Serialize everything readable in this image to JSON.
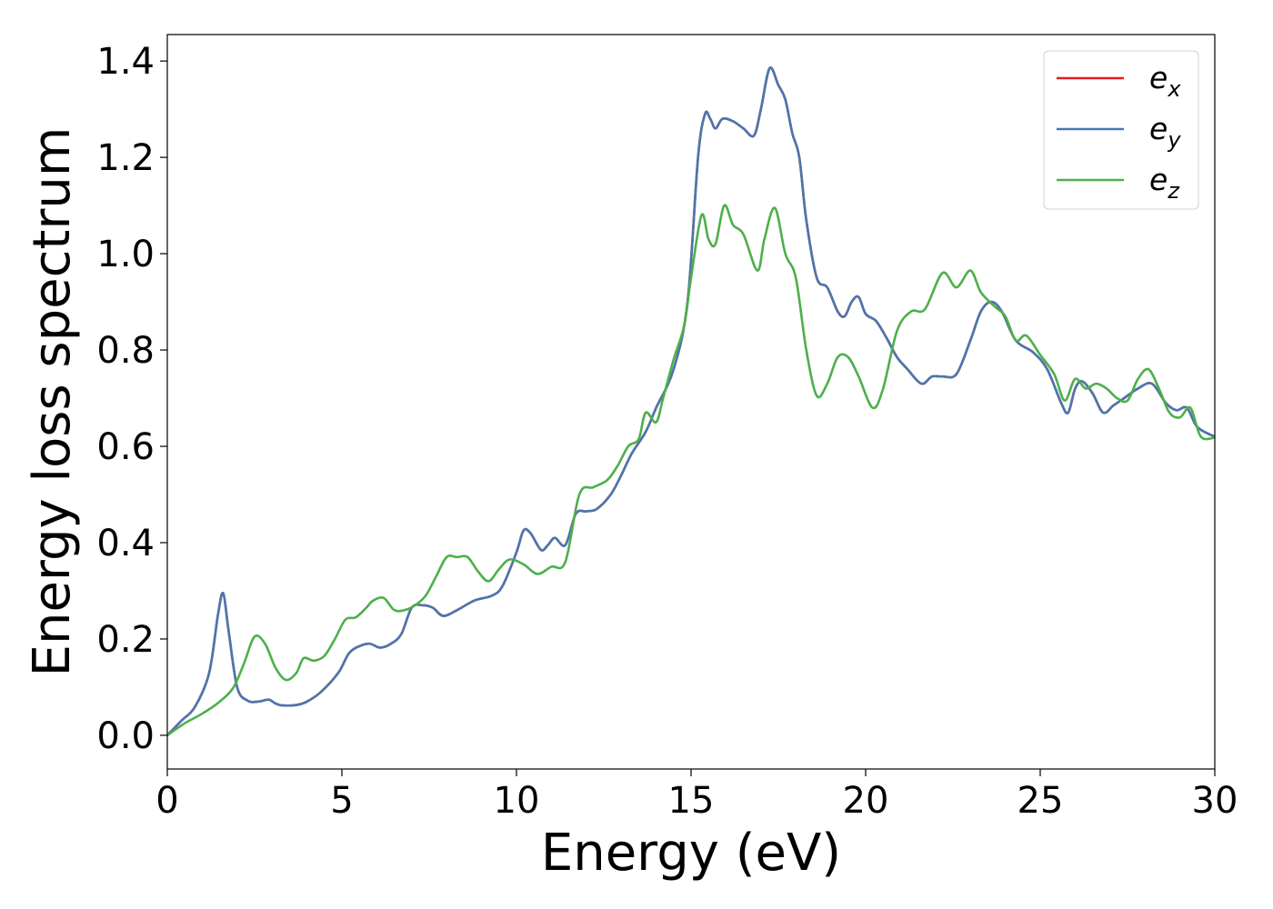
{
  "chart_data": {
    "type": "line",
    "title": "",
    "xlabel": "Energy (eV)",
    "ylabel": "Energy loss spectrum",
    "xlim": [
      0,
      30
    ],
    "ylim": [
      -0.07,
      1.455
    ],
    "xticks": [
      0,
      5,
      10,
      15,
      20,
      25,
      30
    ],
    "xtick_labels": [
      "0",
      "5",
      "10",
      "15",
      "20",
      "25",
      "30"
    ],
    "yticks": [
      0.0,
      0.2,
      0.4,
      0.6,
      0.8,
      1.0,
      1.2,
      1.4
    ],
    "ytick_labels": [
      "0.0",
      "0.2",
      "0.4",
      "0.6",
      "0.8",
      "1.0",
      "1.2",
      "1.4"
    ],
    "grid": false,
    "legend_position": "top-right",
    "series": [
      {
        "name": "e_x",
        "label_base": "e",
        "label_sub": "x",
        "color": "#e41a1c",
        "points": [
          [
            0,
            0
          ],
          [
            0.4,
            0.03
          ],
          [
            0.8,
            0.06
          ],
          [
            1.2,
            0.13
          ],
          [
            1.45,
            0.25
          ],
          [
            1.6,
            0.295
          ],
          [
            1.75,
            0.22
          ],
          [
            2.0,
            0.1
          ],
          [
            2.3,
            0.072
          ],
          [
            2.6,
            0.07
          ],
          [
            2.9,
            0.074
          ],
          [
            3.1,
            0.066
          ],
          [
            3.3,
            0.062
          ],
          [
            3.7,
            0.063
          ],
          [
            4.0,
            0.07
          ],
          [
            4.4,
            0.09
          ],
          [
            4.9,
            0.13
          ],
          [
            5.2,
            0.17
          ],
          [
            5.5,
            0.185
          ],
          [
            5.8,
            0.19
          ],
          [
            6.1,
            0.182
          ],
          [
            6.4,
            0.19
          ],
          [
            6.7,
            0.21
          ],
          [
            7.0,
            0.265
          ],
          [
            7.3,
            0.27
          ],
          [
            7.6,
            0.265
          ],
          [
            7.9,
            0.248
          ],
          [
            8.3,
            0.26
          ],
          [
            8.8,
            0.28
          ],
          [
            9.3,
            0.29
          ],
          [
            9.6,
            0.31
          ],
          [
            10.0,
            0.38
          ],
          [
            10.2,
            0.425
          ],
          [
            10.4,
            0.42
          ],
          [
            10.7,
            0.385
          ],
          [
            10.9,
            0.395
          ],
          [
            11.1,
            0.41
          ],
          [
            11.4,
            0.395
          ],
          [
            11.7,
            0.46
          ],
          [
            12.0,
            0.465
          ],
          [
            12.3,
            0.47
          ],
          [
            12.7,
            0.5
          ],
          [
            13.0,
            0.54
          ],
          [
            13.3,
            0.585
          ],
          [
            13.7,
            0.63
          ],
          [
            14.0,
            0.68
          ],
          [
            14.5,
            0.76
          ],
          [
            14.9,
            0.9
          ],
          [
            15.2,
            1.2
          ],
          [
            15.4,
            1.29
          ],
          [
            15.55,
            1.28
          ],
          [
            15.7,
            1.26
          ],
          [
            15.9,
            1.28
          ],
          [
            16.2,
            1.275
          ],
          [
            16.5,
            1.26
          ],
          [
            16.8,
            1.245
          ],
          [
            17.0,
            1.3
          ],
          [
            17.25,
            1.385
          ],
          [
            17.5,
            1.35
          ],
          [
            17.7,
            1.32
          ],
          [
            17.9,
            1.25
          ],
          [
            18.1,
            1.2
          ],
          [
            18.3,
            1.07
          ],
          [
            18.6,
            0.95
          ],
          [
            18.9,
            0.93
          ],
          [
            19.2,
            0.88
          ],
          [
            19.4,
            0.87
          ],
          [
            19.6,
            0.9
          ],
          [
            19.8,
            0.91
          ],
          [
            20.0,
            0.875
          ],
          [
            20.3,
            0.86
          ],
          [
            20.6,
            0.825
          ],
          [
            20.9,
            0.785
          ],
          [
            21.2,
            0.76
          ],
          [
            21.6,
            0.73
          ],
          [
            21.9,
            0.745
          ],
          [
            22.2,
            0.745
          ],
          [
            22.6,
            0.75
          ],
          [
            23.0,
            0.82
          ],
          [
            23.3,
            0.88
          ],
          [
            23.6,
            0.9
          ],
          [
            23.9,
            0.88
          ],
          [
            24.3,
            0.82
          ],
          [
            24.8,
            0.795
          ],
          [
            25.2,
            0.76
          ],
          [
            25.6,
            0.69
          ],
          [
            25.8,
            0.67
          ],
          [
            26.0,
            0.72
          ],
          [
            26.2,
            0.735
          ],
          [
            26.5,
            0.71
          ],
          [
            26.8,
            0.67
          ],
          [
            27.1,
            0.685
          ],
          [
            27.4,
            0.7
          ],
          [
            27.8,
            0.72
          ],
          [
            28.2,
            0.73
          ],
          [
            28.6,
            0.69
          ],
          [
            28.9,
            0.675
          ],
          [
            29.2,
            0.68
          ],
          [
            29.5,
            0.64
          ],
          [
            30.0,
            0.62
          ]
        ]
      },
      {
        "name": "e_y",
        "label_base": "e",
        "label_sub": "y",
        "color": "#4a76b0",
        "points": [
          [
            0,
            0
          ],
          [
            0.4,
            0.03
          ],
          [
            0.8,
            0.06
          ],
          [
            1.2,
            0.13
          ],
          [
            1.45,
            0.25
          ],
          [
            1.6,
            0.295
          ],
          [
            1.75,
            0.22
          ],
          [
            2.0,
            0.1
          ],
          [
            2.3,
            0.072
          ],
          [
            2.6,
            0.07
          ],
          [
            2.9,
            0.074
          ],
          [
            3.1,
            0.066
          ],
          [
            3.3,
            0.062
          ],
          [
            3.7,
            0.063
          ],
          [
            4.0,
            0.07
          ],
          [
            4.4,
            0.09
          ],
          [
            4.9,
            0.13
          ],
          [
            5.2,
            0.17
          ],
          [
            5.5,
            0.185
          ],
          [
            5.8,
            0.19
          ],
          [
            6.1,
            0.182
          ],
          [
            6.4,
            0.19
          ],
          [
            6.7,
            0.21
          ],
          [
            7.0,
            0.265
          ],
          [
            7.3,
            0.27
          ],
          [
            7.6,
            0.265
          ],
          [
            7.9,
            0.248
          ],
          [
            8.3,
            0.26
          ],
          [
            8.8,
            0.28
          ],
          [
            9.3,
            0.29
          ],
          [
            9.6,
            0.31
          ],
          [
            10.0,
            0.38
          ],
          [
            10.2,
            0.425
          ],
          [
            10.4,
            0.42
          ],
          [
            10.7,
            0.385
          ],
          [
            10.9,
            0.395
          ],
          [
            11.1,
            0.41
          ],
          [
            11.4,
            0.395
          ],
          [
            11.7,
            0.46
          ],
          [
            12.0,
            0.465
          ],
          [
            12.3,
            0.47
          ],
          [
            12.7,
            0.5
          ],
          [
            13.0,
            0.54
          ],
          [
            13.3,
            0.585
          ],
          [
            13.7,
            0.63
          ],
          [
            14.0,
            0.68
          ],
          [
            14.5,
            0.76
          ],
          [
            14.9,
            0.9
          ],
          [
            15.2,
            1.2
          ],
          [
            15.4,
            1.29
          ],
          [
            15.55,
            1.28
          ],
          [
            15.7,
            1.26
          ],
          [
            15.9,
            1.28
          ],
          [
            16.2,
            1.275
          ],
          [
            16.5,
            1.26
          ],
          [
            16.8,
            1.245
          ],
          [
            17.0,
            1.3
          ],
          [
            17.25,
            1.385
          ],
          [
            17.5,
            1.35
          ],
          [
            17.7,
            1.32
          ],
          [
            17.9,
            1.25
          ],
          [
            18.1,
            1.2
          ],
          [
            18.3,
            1.07
          ],
          [
            18.6,
            0.95
          ],
          [
            18.9,
            0.93
          ],
          [
            19.2,
            0.88
          ],
          [
            19.4,
            0.87
          ],
          [
            19.6,
            0.9
          ],
          [
            19.8,
            0.91
          ],
          [
            20.0,
            0.875
          ],
          [
            20.3,
            0.86
          ],
          [
            20.6,
            0.825
          ],
          [
            20.9,
            0.785
          ],
          [
            21.2,
            0.76
          ],
          [
            21.6,
            0.73
          ],
          [
            21.9,
            0.745
          ],
          [
            22.2,
            0.745
          ],
          [
            22.6,
            0.75
          ],
          [
            23.0,
            0.82
          ],
          [
            23.3,
            0.88
          ],
          [
            23.6,
            0.9
          ],
          [
            23.9,
            0.88
          ],
          [
            24.3,
            0.82
          ],
          [
            24.8,
            0.795
          ],
          [
            25.2,
            0.76
          ],
          [
            25.6,
            0.69
          ],
          [
            25.8,
            0.67
          ],
          [
            26.0,
            0.72
          ],
          [
            26.2,
            0.735
          ],
          [
            26.5,
            0.71
          ],
          [
            26.8,
            0.67
          ],
          [
            27.1,
            0.685
          ],
          [
            27.4,
            0.7
          ],
          [
            27.8,
            0.72
          ],
          [
            28.2,
            0.73
          ],
          [
            28.6,
            0.69
          ],
          [
            28.9,
            0.675
          ],
          [
            29.2,
            0.68
          ],
          [
            29.5,
            0.64
          ],
          [
            30.0,
            0.62
          ]
        ]
      },
      {
        "name": "e_z",
        "label_base": "e",
        "label_sub": "z",
        "color": "#4daf4a",
        "points": [
          [
            0,
            0
          ],
          [
            0.5,
            0.025
          ],
          [
            1.0,
            0.045
          ],
          [
            1.5,
            0.07
          ],
          [
            1.9,
            0.1
          ],
          [
            2.2,
            0.15
          ],
          [
            2.5,
            0.205
          ],
          [
            2.8,
            0.19
          ],
          [
            3.1,
            0.14
          ],
          [
            3.4,
            0.115
          ],
          [
            3.7,
            0.13
          ],
          [
            3.9,
            0.16
          ],
          [
            4.2,
            0.155
          ],
          [
            4.5,
            0.165
          ],
          [
            4.8,
            0.2
          ],
          [
            5.1,
            0.24
          ],
          [
            5.4,
            0.245
          ],
          [
            5.7,
            0.265
          ],
          [
            5.9,
            0.28
          ],
          [
            6.2,
            0.285
          ],
          [
            6.5,
            0.26
          ],
          [
            6.8,
            0.26
          ],
          [
            7.1,
            0.27
          ],
          [
            7.4,
            0.29
          ],
          [
            7.7,
            0.33
          ],
          [
            8.0,
            0.37
          ],
          [
            8.3,
            0.37
          ],
          [
            8.6,
            0.37
          ],
          [
            8.9,
            0.34
          ],
          [
            9.2,
            0.32
          ],
          [
            9.5,
            0.345
          ],
          [
            9.8,
            0.365
          ],
          [
            10.2,
            0.355
          ],
          [
            10.6,
            0.335
          ],
          [
            11.0,
            0.35
          ],
          [
            11.4,
            0.36
          ],
          [
            11.8,
            0.5
          ],
          [
            12.2,
            0.515
          ],
          [
            12.6,
            0.53
          ],
          [
            12.9,
            0.56
          ],
          [
            13.2,
            0.6
          ],
          [
            13.5,
            0.615
          ],
          [
            13.7,
            0.67
          ],
          [
            14.0,
            0.65
          ],
          [
            14.2,
            0.7
          ],
          [
            14.5,
            0.78
          ],
          [
            14.8,
            0.85
          ],
          [
            15.0,
            0.95
          ],
          [
            15.3,
            1.08
          ],
          [
            15.5,
            1.03
          ],
          [
            15.7,
            1.02
          ],
          [
            15.95,
            1.1
          ],
          [
            16.2,
            1.06
          ],
          [
            16.5,
            1.04
          ],
          [
            16.9,
            0.965
          ],
          [
            17.1,
            1.03
          ],
          [
            17.4,
            1.095
          ],
          [
            17.7,
            1.0
          ],
          [
            18.0,
            0.95
          ],
          [
            18.3,
            0.8
          ],
          [
            18.6,
            0.705
          ],
          [
            18.9,
            0.73
          ],
          [
            19.2,
            0.785
          ],
          [
            19.5,
            0.785
          ],
          [
            19.8,
            0.745
          ],
          [
            20.2,
            0.68
          ],
          [
            20.5,
            0.72
          ],
          [
            20.9,
            0.84
          ],
          [
            21.3,
            0.88
          ],
          [
            21.7,
            0.885
          ],
          [
            22.2,
            0.96
          ],
          [
            22.6,
            0.93
          ],
          [
            23.0,
            0.965
          ],
          [
            23.3,
            0.92
          ],
          [
            23.7,
            0.89
          ],
          [
            24.0,
            0.87
          ],
          [
            24.3,
            0.82
          ],
          [
            24.6,
            0.83
          ],
          [
            25.0,
            0.79
          ],
          [
            25.4,
            0.75
          ],
          [
            25.7,
            0.695
          ],
          [
            26.0,
            0.74
          ],
          [
            26.3,
            0.72
          ],
          [
            26.6,
            0.73
          ],
          [
            26.9,
            0.72
          ],
          [
            27.2,
            0.7
          ],
          [
            27.5,
            0.695
          ],
          [
            27.8,
            0.74
          ],
          [
            28.1,
            0.76
          ],
          [
            28.4,
            0.72
          ],
          [
            28.7,
            0.67
          ],
          [
            29.0,
            0.66
          ],
          [
            29.3,
            0.68
          ],
          [
            29.6,
            0.62
          ],
          [
            30.0,
            0.618
          ]
        ]
      }
    ]
  }
}
